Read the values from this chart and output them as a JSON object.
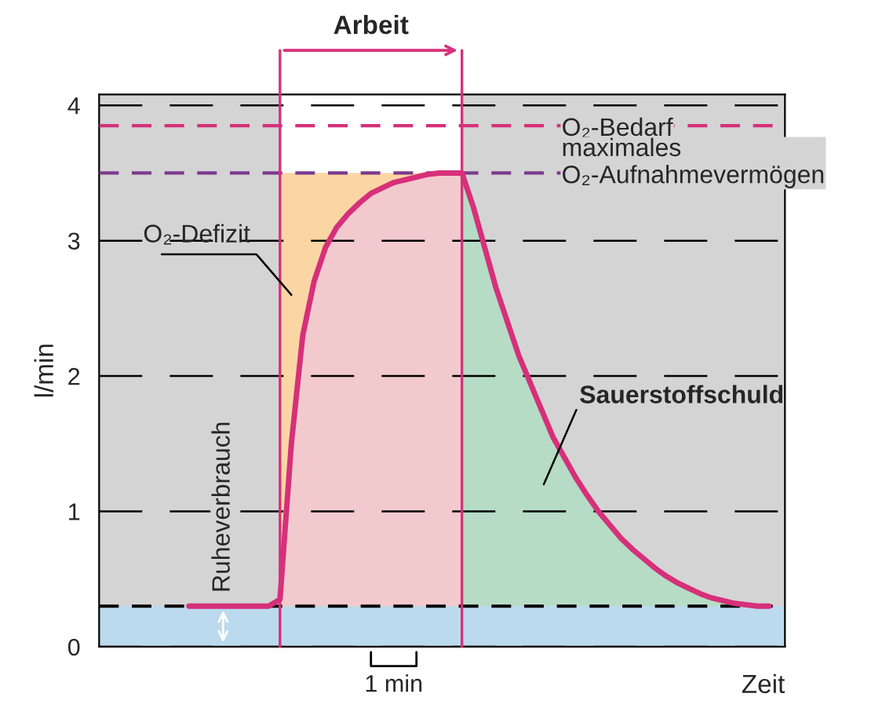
{
  "chart_data": {
    "type": "line",
    "xlabel": "Zeit",
    "ylabel": "l/min",
    "ylim": [
      0,
      4.08
    ],
    "yticks": [
      0,
      1,
      2,
      3,
      4
    ],
    "grid": "y",
    "categories": [
      null,
      null,
      null,
      null,
      null,
      null,
      null,
      null,
      null,
      null,
      null,
      null,
      null,
      null,
      null,
      null,
      null,
      null,
      null,
      null,
      null,
      null,
      null,
      null,
      null,
      null,
      null,
      null,
      null,
      null,
      null,
      null,
      null,
      null,
      null,
      null,
      null,
      null,
      null,
      null,
      null,
      null,
      null,
      null,
      null,
      null,
      null,
      null,
      null,
      null,
      null,
      null
    ],
    "series": [
      {
        "color": "#d6307a",
        "values": [
          0.3,
          0.3,
          0.3,
          0.3,
          0.3,
          0.3,
          0.3,
          0.3,
          0.35,
          1.5,
          2.3,
          2.7,
          2.95,
          3.1,
          3.2,
          3.28,
          3.35,
          3.39,
          3.43,
          3.45,
          3.47,
          3.49,
          3.5,
          3.5,
          3.5,
          3.25,
          2.95,
          2.65,
          2.4,
          2.15,
          1.95,
          1.75,
          1.55,
          1.4,
          1.25,
          1.12,
          1.0,
          0.9,
          0.8,
          0.72,
          0.65,
          0.58,
          0.52,
          0.47,
          0.43,
          0.39,
          0.36,
          0.34,
          0.32,
          0.31,
          0.3,
          0.3
        ],
        "colors": [
          null,
          null,
          null,
          null,
          null,
          null,
          null,
          null,
          "#f2cace",
          "#f2cace",
          "#f2cace",
          "#f2cace",
          "#f2cace",
          "#f2cace",
          "#f2cace",
          "#f2cace",
          "#f2cace",
          "#f2cace",
          "#f2cace",
          "#f2cace",
          "#f2cace",
          "#f2cace",
          "#f2cace",
          "#f2cace",
          "#b6dcc6",
          "#b6dcc6",
          "#b6dcc6",
          "#b6dcc6",
          "#b6dcc6",
          "#b6dcc6",
          "#b6dcc6",
          "#b6dcc6",
          "#b6dcc6",
          "#b6dcc6",
          "#b6dcc6",
          "#b6dcc6",
          "#b6dcc6",
          "#b6dcc6",
          "#b6dcc6",
          "#b6dcc6",
          "#b6dcc6",
          "#b6dcc6",
          "#b6dcc6",
          "#b6dcc6",
          "#b6dcc6",
          "#b6dcc6",
          "#b6dcc6",
          "#b6dcc6",
          "#b6dcc6",
          "#b6dcc6",
          "#b6dcc6",
          "#b6dcc6"
        ]
      }
    ],
    "ref_lines": [
      {
        "axis": "y",
        "value": 3.85,
        "label": "O₂-Bedarf",
        "color": "#d6307a",
        "line_style": "dashed"
      },
      {
        "axis": "y",
        "value": 3.5,
        "label": "maximales\nO₂-Aufnahmevermögen",
        "color": "#7b3a8e",
        "line_style": "dashed"
      },
      {
        "axis": "y",
        "value": 0.3,
        "label": "Ruheverbrauch",
        "color": "#000000",
        "line_style": "dashed"
      }
    ],
    "bands": [
      {
        "axis": "y",
        "from": 0,
        "to": 0.3,
        "color": "#bcdaee"
      },
      {
        "axis": "y",
        "from": 0.3,
        "to": 3.5,
        "label": "O₂-Defizit",
        "color": "#fbd6a4"
      }
    ],
    "annotations": [
      "Arbeit",
      "Sauerstoffschuld",
      "1 min"
    ]
  }
}
